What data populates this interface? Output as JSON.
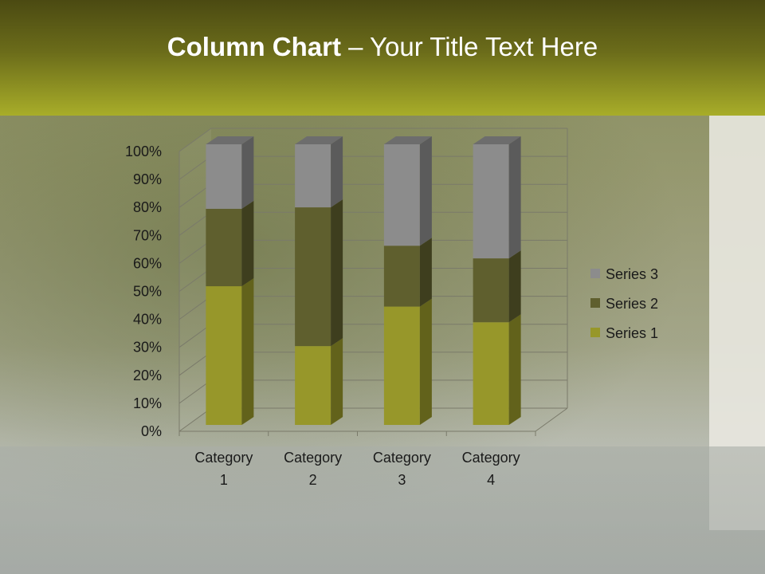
{
  "slide": {
    "title_bold": "Column Chart",
    "title_rest": " – Your Title Text Here"
  },
  "chart_data": {
    "type": "bar",
    "stacking": "percent",
    "three_d": true,
    "categories": [
      "Category 1",
      "Category 2",
      "Category 3",
      "Category 4"
    ],
    "category_lines": [
      [
        "Category",
        "1"
      ],
      [
        "Category",
        "2"
      ],
      [
        "Category",
        "3"
      ],
      [
        "Category",
        "4"
      ]
    ],
    "series": [
      {
        "name": "Series 1",
        "values": [
          4.3,
          2.5,
          3.5,
          4.5
        ],
        "color": "#97972a"
      },
      {
        "name": "Series 2",
        "values": [
          2.4,
          4.4,
          1.8,
          2.8
        ],
        "color": "#5f5f2e"
      },
      {
        "name": "Series 3",
        "values": [
          2,
          2,
          3,
          5
        ],
        "color": "#8c8c8c"
      }
    ],
    "y_ticks": [
      "0%",
      "10%",
      "20%",
      "30%",
      "40%",
      "50%",
      "60%",
      "70%",
      "80%",
      "90%",
      "100%"
    ],
    "ylim": [
      0,
      100
    ],
    "grid": true,
    "legend": "right"
  }
}
